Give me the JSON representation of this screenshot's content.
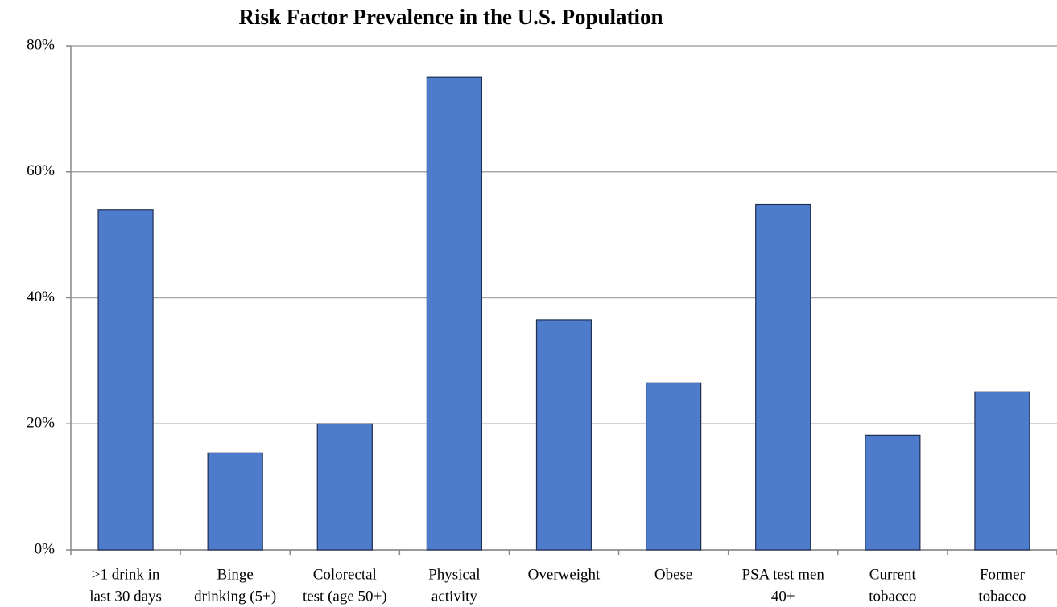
{
  "chart_data": {
    "type": "bar",
    "title": "Risk Factor Prevalence in the U.S. Population",
    "categories": [
      [
        ">1 drink in",
        "last 30 days"
      ],
      [
        "Binge",
        "drinking (5+)"
      ],
      [
        "Colorectal",
        "test (age 50+)"
      ],
      [
        "Physical",
        "activity"
      ],
      [
        "Overweight"
      ],
      [
        "Obese"
      ],
      [
        "PSA test men",
        "40+"
      ],
      [
        "Current",
        "tobacco"
      ],
      [
        "Former",
        "tobacco"
      ]
    ],
    "values": [
      54,
      15.4,
      20,
      75,
      36.5,
      26.5,
      54.8,
      18.2,
      25.1
    ],
    "color": "#4f7bcc",
    "ylim": [
      0,
      80
    ],
    "yticks": [
      {
        "value": 0,
        "label": "0%"
      },
      {
        "value": 20,
        "label": "20%"
      },
      {
        "value": 40,
        "label": "40%"
      },
      {
        "value": 60,
        "label": "60%"
      },
      {
        "value": 80,
        "label": "80%"
      }
    ],
    "grid": true
  }
}
